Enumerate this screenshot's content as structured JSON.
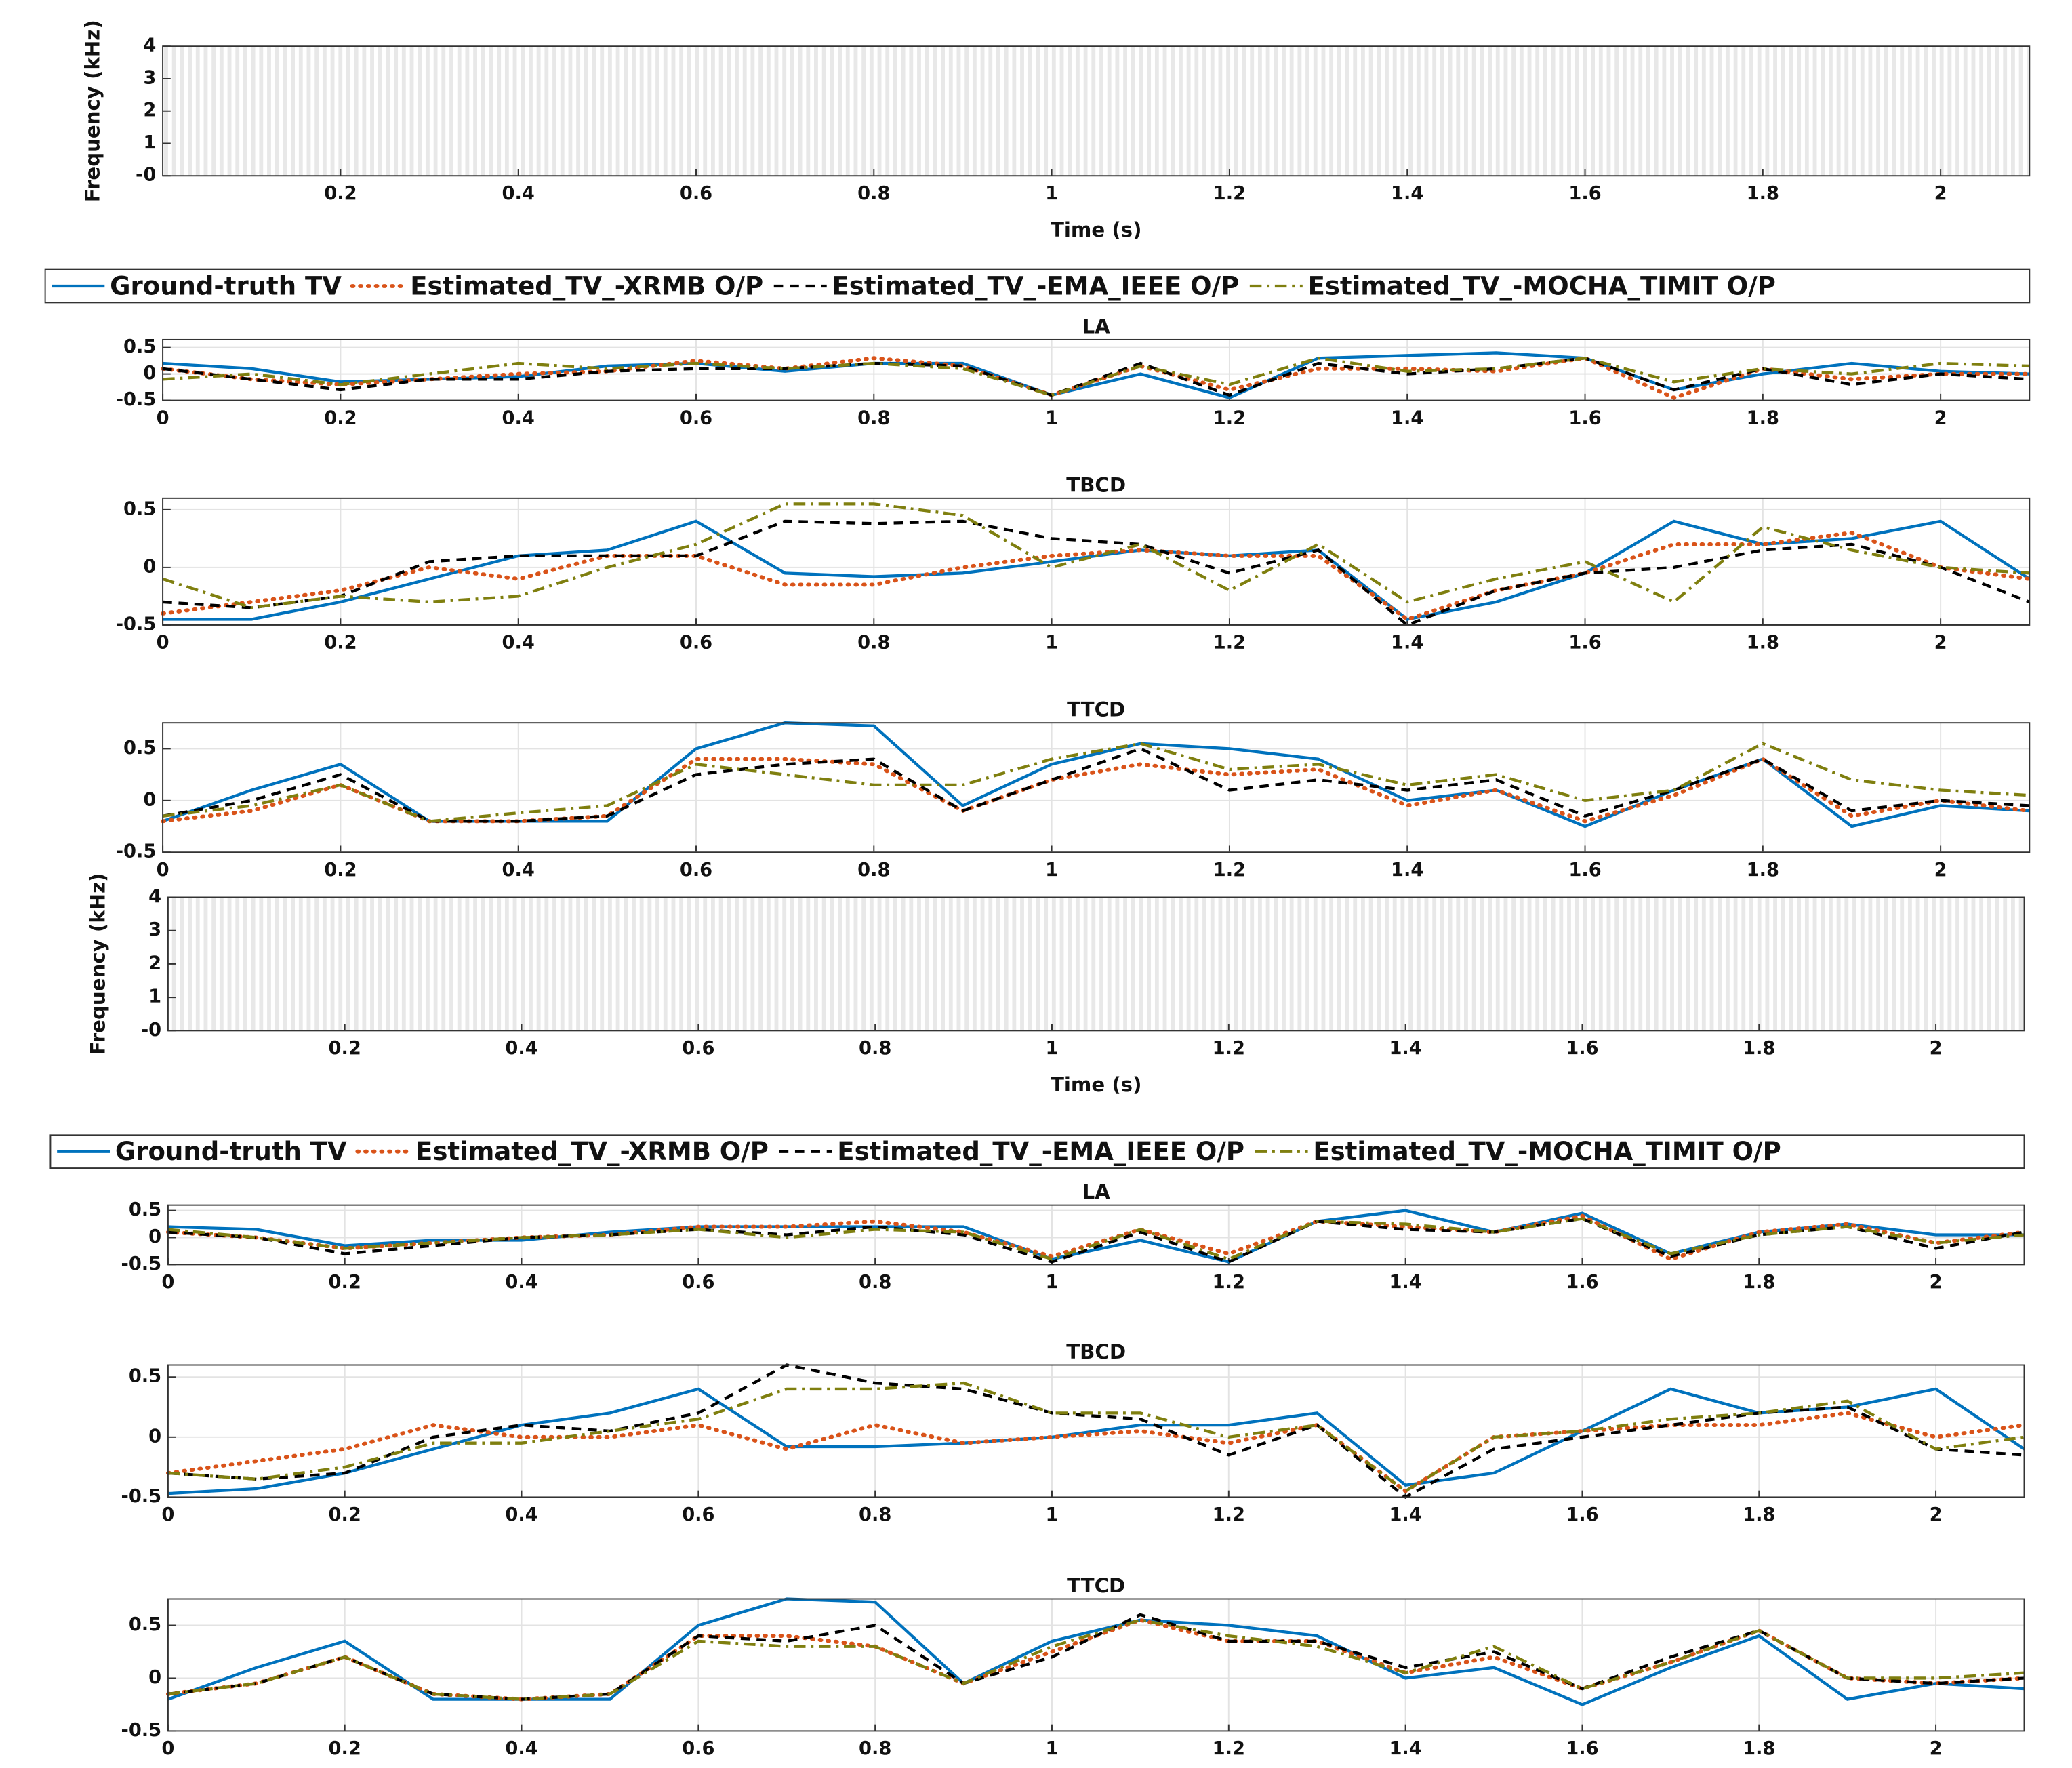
{
  "chart_data": [
    {
      "type": "spectrogram",
      "xlabel": "Time (s)",
      "ylabel": "Frequency (kHz)",
      "xlim": [
        0,
        2.1
      ],
      "ylim": [
        0,
        4
      ],
      "xticks": [
        0.2,
        0.4,
        0.6,
        0.8,
        1,
        1.2,
        1.4,
        1.6,
        1.8,
        2
      ],
      "yticks": [
        {
          "value": 0,
          "label": "-0"
        },
        1,
        2,
        3,
        4
      ]
    },
    {
      "type": "line",
      "title": "LA",
      "legend": "above",
      "grid": true,
      "xlim": [
        0,
        2.1
      ],
      "ylim": [
        -0.5,
        0.65
      ],
      "xticks": [
        0,
        0.2,
        0.4,
        0.6,
        0.8,
        1,
        1.2,
        1.4,
        1.6,
        1.8,
        2
      ],
      "yticks": [
        -0.5,
        0,
        0.5
      ],
      "x": [
        0,
        0.1,
        0.2,
        0.3,
        0.4,
        0.5,
        0.6,
        0.7,
        0.8,
        0.9,
        1,
        1.1,
        1.2,
        1.3,
        1.4,
        1.5,
        1.6,
        1.7,
        1.8,
        1.9,
        2,
        2.1
      ],
      "series": [
        {
          "name": "Ground-truth TV",
          "color": "#0072bd",
          "dash": "solid",
          "values": [
            0.2,
            0.1,
            -0.15,
            -0.1,
            -0.05,
            0.15,
            0.2,
            0.05,
            0.2,
            0.2,
            -0.4,
            0.0,
            -0.45,
            0.3,
            0.35,
            0.4,
            0.3,
            -0.3,
            0.0,
            0.2,
            0.05,
            0.0
          ]
        },
        {
          "name": "Estimated_TV_-XRMB O/P",
          "color": "#d95319",
          "dash": "dotted",
          "values": [
            0.1,
            -0.1,
            -0.2,
            -0.1,
            0.0,
            0.05,
            0.25,
            0.1,
            0.3,
            0.15,
            -0.4,
            0.15,
            -0.3,
            0.1,
            0.1,
            0.05,
            0.3,
            -0.45,
            0.1,
            -0.1,
            0.0,
            0.0
          ]
        },
        {
          "name": "Estimated_TV_-EMA_IEEE O/P",
          "color": "#000000",
          "dash": "dashed",
          "values": [
            0.1,
            -0.1,
            -0.3,
            -0.1,
            -0.1,
            0.05,
            0.1,
            0.1,
            0.2,
            0.15,
            -0.4,
            0.2,
            -0.4,
            0.2,
            0.0,
            0.1,
            0.3,
            -0.3,
            0.1,
            -0.2,
            0.0,
            -0.1
          ]
        },
        {
          "name": "Estimated_TV_-MOCHA_TIMIT O/P",
          "color": "#7f7f0f",
          "dash": "dashdot",
          "values": [
            -0.1,
            0.0,
            -0.2,
            0.0,
            0.2,
            0.1,
            0.2,
            0.1,
            0.2,
            0.1,
            -0.4,
            0.15,
            -0.2,
            0.3,
            0.05,
            0.1,
            0.3,
            -0.15,
            0.1,
            0.0,
            0.2,
            0.15
          ]
        }
      ]
    },
    {
      "type": "line",
      "title": "TBCD",
      "grid": true,
      "xlim": [
        0,
        2.1
      ],
      "ylim": [
        -0.5,
        0.6
      ],
      "xticks": [
        0,
        0.2,
        0.4,
        0.6,
        0.8,
        1,
        1.2,
        1.4,
        1.6,
        1.8,
        2
      ],
      "yticks": [
        -0.5,
        0,
        0.5
      ],
      "x": [
        0,
        0.1,
        0.2,
        0.3,
        0.4,
        0.5,
        0.6,
        0.7,
        0.8,
        0.9,
        1,
        1.1,
        1.2,
        1.3,
        1.4,
        1.5,
        1.6,
        1.7,
        1.8,
        1.9,
        2,
        2.1
      ],
      "series": [
        {
          "color": "#0072bd",
          "dash": "solid",
          "values": [
            -0.45,
            -0.45,
            -0.3,
            -0.1,
            0.1,
            0.15,
            0.4,
            -0.05,
            -0.08,
            -0.05,
            0.05,
            0.15,
            0.1,
            0.15,
            -0.45,
            -0.3,
            -0.05,
            0.4,
            0.2,
            0.25,
            0.4,
            -0.1
          ]
        },
        {
          "color": "#d95319",
          "dash": "dotted",
          "values": [
            -0.4,
            -0.3,
            -0.2,
            0.0,
            -0.1,
            0.1,
            0.1,
            -0.15,
            -0.15,
            0.0,
            0.1,
            0.15,
            0.1,
            0.1,
            -0.45,
            -0.2,
            -0.05,
            0.2,
            0.2,
            0.3,
            0.0,
            -0.1
          ]
        },
        {
          "color": "#000000",
          "dash": "dashed",
          "values": [
            -0.3,
            -0.35,
            -0.25,
            0.05,
            0.1,
            0.1,
            0.1,
            0.4,
            0.38,
            0.4,
            0.25,
            0.2,
            -0.05,
            0.15,
            -0.5,
            -0.2,
            -0.05,
            0.0,
            0.15,
            0.2,
            0.0,
            -0.3
          ]
        },
        {
          "color": "#7f7f0f",
          "dash": "dashdot",
          "values": [
            -0.1,
            -0.35,
            -0.25,
            -0.3,
            -0.25,
            0.0,
            0.2,
            0.55,
            0.55,
            0.45,
            0.0,
            0.2,
            -0.2,
            0.2,
            -0.3,
            -0.1,
            0.05,
            -0.3,
            0.35,
            0.15,
            0.0,
            -0.05
          ]
        }
      ]
    },
    {
      "type": "line",
      "title": "TTCD",
      "grid": true,
      "xlim": [
        0,
        2.1
      ],
      "ylim": [
        -0.5,
        0.75
      ],
      "xticks": [
        0,
        0.2,
        0.4,
        0.6,
        0.8,
        1,
        1.2,
        1.4,
        1.6,
        1.8,
        2
      ],
      "yticks": [
        -0.5,
        0,
        0.5
      ],
      "x": [
        0,
        0.1,
        0.2,
        0.3,
        0.4,
        0.5,
        0.6,
        0.7,
        0.8,
        0.9,
        1,
        1.1,
        1.2,
        1.3,
        1.4,
        1.5,
        1.6,
        1.7,
        1.8,
        1.9,
        2,
        2.1
      ],
      "series": [
        {
          "color": "#0072bd",
          "dash": "solid",
          "values": [
            -0.2,
            0.1,
            0.35,
            -0.2,
            -0.2,
            -0.2,
            0.5,
            0.75,
            0.72,
            -0.05,
            0.35,
            0.55,
            0.5,
            0.4,
            0.0,
            0.1,
            -0.25,
            0.1,
            0.4,
            -0.25,
            -0.05,
            -0.1
          ]
        },
        {
          "color": "#d95319",
          "dash": "dotted",
          "values": [
            -0.2,
            -0.1,
            0.15,
            -0.2,
            -0.2,
            -0.15,
            0.4,
            0.4,
            0.35,
            -0.1,
            0.2,
            0.35,
            0.25,
            0.3,
            -0.05,
            0.1,
            -0.2,
            0.05,
            0.4,
            -0.15,
            0.0,
            -0.1
          ]
        },
        {
          "color": "#000000",
          "dash": "dashed",
          "values": [
            -0.15,
            0.0,
            0.25,
            -0.2,
            -0.2,
            -0.15,
            0.25,
            0.35,
            0.4,
            -0.1,
            0.2,
            0.5,
            0.1,
            0.2,
            0.1,
            0.2,
            -0.15,
            0.1,
            0.4,
            -0.1,
            0.0,
            -0.05
          ]
        },
        {
          "color": "#7f7f0f",
          "dash": "dashdot",
          "values": [
            -0.15,
            -0.05,
            0.15,
            -0.2,
            -0.12,
            -0.05,
            0.35,
            0.25,
            0.15,
            0.15,
            0.4,
            0.55,
            0.3,
            0.35,
            0.15,
            0.25,
            0.0,
            0.1,
            0.55,
            0.2,
            0.1,
            0.05
          ]
        }
      ]
    },
    {
      "type": "spectrogram",
      "xlabel": "Time (s)",
      "ylabel": "Frequency (kHz)",
      "xlim": [
        0,
        2.1
      ],
      "ylim": [
        0,
        4
      ],
      "xticks": [
        0.2,
        0.4,
        0.6,
        0.8,
        1,
        1.2,
        1.4,
        1.6,
        1.8,
        2
      ],
      "yticks": [
        {
          "value": 0,
          "label": "-0"
        },
        1,
        2,
        3,
        4
      ]
    },
    {
      "type": "line",
      "title": "LA",
      "legend": "above",
      "grid": true,
      "xlim": [
        0,
        2.1
      ],
      "ylim": [
        -0.5,
        0.6
      ],
      "xticks": [
        0,
        0.2,
        0.4,
        0.6,
        0.8,
        1,
        1.2,
        1.4,
        1.6,
        1.8,
        2
      ],
      "yticks": [
        -0.5,
        0,
        0.5
      ],
      "x": [
        0,
        0.1,
        0.2,
        0.3,
        0.4,
        0.5,
        0.6,
        0.7,
        0.8,
        0.9,
        1,
        1.1,
        1.2,
        1.3,
        1.4,
        1.5,
        1.6,
        1.7,
        1.8,
        1.9,
        2,
        2.1
      ],
      "series": [
        {
          "name": "Ground-truth TV",
          "color": "#0072bd",
          "dash": "solid",
          "values": [
            0.2,
            0.15,
            -0.15,
            -0.05,
            -0.05,
            0.1,
            0.2,
            0.2,
            0.2,
            0.2,
            -0.4,
            -0.05,
            -0.45,
            0.3,
            0.5,
            0.1,
            0.45,
            -0.3,
            0.1,
            0.25,
            0.05,
            0.05
          ]
        },
        {
          "name": "Estimated_TV_-XRMB O/P",
          "color": "#d95319",
          "dash": "dotted",
          "values": [
            0.1,
            0.0,
            -0.2,
            -0.1,
            0.0,
            0.05,
            0.2,
            0.2,
            0.3,
            0.1,
            -0.35,
            0.15,
            -0.3,
            0.3,
            0.2,
            0.1,
            0.4,
            -0.4,
            0.1,
            0.25,
            -0.1,
            0.1
          ]
        },
        {
          "name": "Estimated_TV_-EMA_IEEE O/P",
          "color": "#000000",
          "dash": "dashed",
          "values": [
            0.1,
            0.0,
            -0.3,
            -0.15,
            0.0,
            0.05,
            0.15,
            0.05,
            0.2,
            0.05,
            -0.45,
            0.1,
            -0.45,
            0.3,
            0.15,
            0.1,
            0.35,
            -0.35,
            0.05,
            0.2,
            -0.2,
            0.1
          ]
        },
        {
          "name": "Estimated_TV_-MOCHA_TIMIT O/P",
          "color": "#7f7f0f",
          "dash": "dashdot",
          "values": [
            0.15,
            0.0,
            -0.2,
            -0.1,
            0.0,
            0.05,
            0.15,
            0.0,
            0.15,
            0.1,
            -0.4,
            0.15,
            -0.4,
            0.3,
            0.25,
            0.1,
            0.35,
            -0.3,
            0.05,
            0.2,
            -0.1,
            0.05
          ]
        }
      ]
    },
    {
      "type": "line",
      "title": "TBCD",
      "grid": true,
      "xlim": [
        0,
        2.1
      ],
      "ylim": [
        -0.5,
        0.6
      ],
      "xticks": [
        0,
        0.2,
        0.4,
        0.6,
        0.8,
        1,
        1.2,
        1.4,
        1.6,
        1.8,
        2
      ],
      "yticks": [
        -0.5,
        0,
        0.5
      ],
      "x": [
        0,
        0.1,
        0.2,
        0.3,
        0.4,
        0.5,
        0.6,
        0.7,
        0.8,
        0.9,
        1,
        1.1,
        1.2,
        1.3,
        1.4,
        1.5,
        1.6,
        1.7,
        1.8,
        1.9,
        2,
        2.1
      ],
      "series": [
        {
          "color": "#0072bd",
          "dash": "solid",
          "values": [
            -0.47,
            -0.43,
            -0.3,
            -0.1,
            0.1,
            0.2,
            0.4,
            -0.08,
            -0.08,
            -0.05,
            0.0,
            0.1,
            0.1,
            0.2,
            -0.4,
            -0.3,
            0.05,
            0.4,
            0.2,
            0.25,
            0.4,
            -0.1
          ]
        },
        {
          "color": "#d95319",
          "dash": "dotted",
          "values": [
            -0.3,
            -0.2,
            -0.1,
            0.1,
            0.0,
            0.0,
            0.1,
            -0.1,
            0.1,
            -0.05,
            0.0,
            0.05,
            -0.05,
            0.1,
            -0.45,
            0.0,
            0.05,
            0.1,
            0.1,
            0.2,
            0.0,
            0.1
          ]
        },
        {
          "color": "#000000",
          "dash": "dashed",
          "values": [
            -0.3,
            -0.35,
            -0.3,
            0.0,
            0.1,
            0.05,
            0.2,
            0.6,
            0.45,
            0.4,
            0.2,
            0.15,
            -0.15,
            0.1,
            -0.5,
            -0.1,
            0.0,
            0.1,
            0.2,
            0.25,
            -0.1,
            -0.15
          ]
        },
        {
          "color": "#7f7f0f",
          "dash": "dashdot",
          "values": [
            -0.3,
            -0.35,
            -0.25,
            -0.05,
            -0.05,
            0.05,
            0.15,
            0.4,
            0.4,
            0.45,
            0.2,
            0.2,
            0.0,
            0.1,
            -0.45,
            0.0,
            0.05,
            0.15,
            0.2,
            0.3,
            -0.1,
            0.0
          ]
        }
      ]
    },
    {
      "type": "line",
      "title": "TTCD",
      "grid": true,
      "xlim": [
        0,
        2.1
      ],
      "ylim": [
        -0.5,
        0.75
      ],
      "xticks": [
        0,
        0.2,
        0.4,
        0.6,
        0.8,
        1,
        1.2,
        1.4,
        1.6,
        1.8,
        2
      ],
      "yticks": [
        -0.5,
        0,
        0.5
      ],
      "x": [
        0,
        0.1,
        0.2,
        0.3,
        0.4,
        0.5,
        0.6,
        0.7,
        0.8,
        0.9,
        1,
        1.1,
        1.2,
        1.3,
        1.4,
        1.5,
        1.6,
        1.7,
        1.8,
        1.9,
        2,
        2.1
      ],
      "series": [
        {
          "color": "#0072bd",
          "dash": "solid",
          "values": [
            -0.2,
            0.1,
            0.35,
            -0.2,
            -0.2,
            -0.2,
            0.5,
            0.75,
            0.72,
            -0.05,
            0.35,
            0.55,
            0.5,
            0.4,
            0.0,
            0.1,
            -0.25,
            0.1,
            0.4,
            -0.2,
            -0.05,
            -0.1
          ]
        },
        {
          "color": "#d95319",
          "dash": "dotted",
          "values": [
            -0.15,
            -0.05,
            0.2,
            -0.15,
            -0.2,
            -0.15,
            0.4,
            0.4,
            0.3,
            -0.05,
            0.25,
            0.55,
            0.35,
            0.35,
            0.05,
            0.2,
            -0.1,
            0.15,
            0.45,
            0.0,
            -0.05,
            0.0
          ]
        },
        {
          "color": "#000000",
          "dash": "dashed",
          "values": [
            -0.15,
            -0.05,
            0.2,
            -0.15,
            -0.2,
            -0.15,
            0.4,
            0.35,
            0.5,
            -0.05,
            0.2,
            0.6,
            0.35,
            0.35,
            0.1,
            0.25,
            -0.1,
            0.2,
            0.45,
            0.0,
            -0.05,
            0.0
          ]
        },
        {
          "color": "#7f7f0f",
          "dash": "dashdot",
          "values": [
            -0.15,
            -0.05,
            0.2,
            -0.15,
            -0.2,
            -0.15,
            0.35,
            0.3,
            0.3,
            -0.05,
            0.3,
            0.55,
            0.4,
            0.3,
            0.05,
            0.3,
            -0.1,
            0.15,
            0.45,
            0.0,
            0.0,
            0.05
          ]
        }
      ]
    }
  ]
}
